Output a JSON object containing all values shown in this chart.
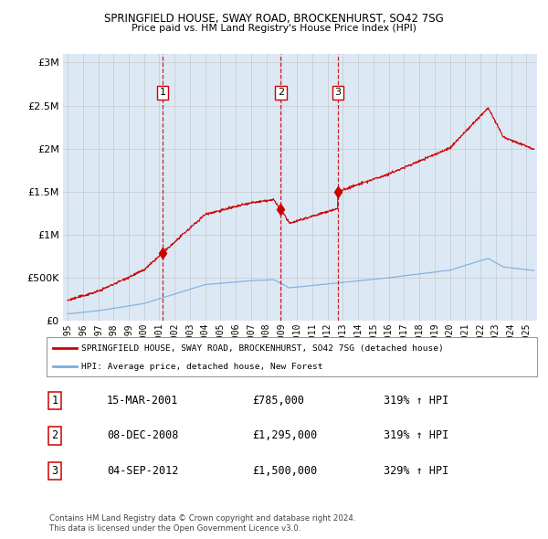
{
  "title": "SPRINGFIELD HOUSE, SWAY ROAD, BROCKENHURST, SO42 7SG",
  "subtitle": "Price paid vs. HM Land Registry's House Price Index (HPI)",
  "background_color": "#dce9f5",
  "plot_bg_color": "#dce9f5",
  "red_line_color": "#cc0000",
  "blue_line_color": "#7aaadd",
  "grid_color": "#bbbbbb",
  "sale_points": [
    {
      "date_num": 2001.21,
      "price": 785000,
      "label": "1"
    },
    {
      "date_num": 2008.93,
      "price": 1295000,
      "label": "2"
    },
    {
      "date_num": 2012.67,
      "price": 1500000,
      "label": "3"
    }
  ],
  "vline_color": "#cc0000",
  "legend_label_red": "SPRINGFIELD HOUSE, SWAY ROAD, BROCKENHURST, SO42 7SG (detached house)",
  "legend_label_blue": "HPI: Average price, detached house, New Forest",
  "table_rows": [
    {
      "num": "1",
      "date": "15-MAR-2001",
      "price": "£785,000",
      "hpi": "319% ↑ HPI"
    },
    {
      "num": "2",
      "date": "08-DEC-2008",
      "price": "£1,295,000",
      "hpi": "319% ↑ HPI"
    },
    {
      "num": "3",
      "date": "04-SEP-2012",
      "price": "£1,500,000",
      "hpi": "329% ↑ HPI"
    }
  ],
  "footer_line1": "Contains HM Land Registry data © Crown copyright and database right 2024.",
  "footer_line2": "This data is licensed under the Open Government Licence v3.0.",
  "ylim": [
    0,
    3100000
  ],
  "xlim_start": 1994.7,
  "xlim_end": 2025.7,
  "yticks": [
    0,
    500000,
    1000000,
    1500000,
    2000000,
    2500000,
    3000000
  ],
  "xtick_years": [
    1995,
    1996,
    1997,
    1998,
    1999,
    2000,
    2001,
    2002,
    2003,
    2004,
    2005,
    2006,
    2007,
    2008,
    2009,
    2010,
    2011,
    2012,
    2013,
    2014,
    2015,
    2016,
    2017,
    2018,
    2019,
    2020,
    2021,
    2022,
    2023,
    2024,
    2025
  ]
}
